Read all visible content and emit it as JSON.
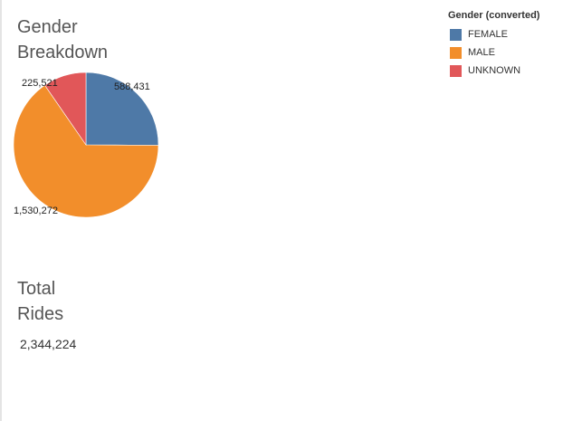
{
  "chart_data": {
    "type": "pie",
    "title": "Gender\nBreakdown",
    "legend_title": "Gender (converted)",
    "legend_position": "top-right",
    "categories": [
      "FEMALE",
      "MALE",
      "UNKNOWN"
    ],
    "values": [
      588431,
      1530272,
      225521
    ],
    "value_labels": [
      "588,431",
      "1,530,272",
      "225,521"
    ],
    "colors": [
      "#4e79a7",
      "#f28e2b",
      "#e15759"
    ]
  },
  "summary": {
    "title": "Total\nRides",
    "value": "2,344,224"
  }
}
